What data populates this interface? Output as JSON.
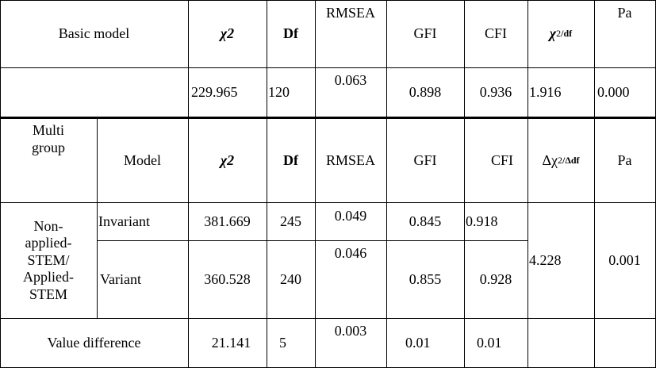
{
  "basic": {
    "header": {
      "model_label": "Basic model",
      "chi2": "χ2",
      "df": "Df",
      "rmsea": "RMSEA",
      "gfi": "GFI",
      "cfi": "CFI",
      "chi2df_chi": "χ",
      "chi2df_sup": "2",
      "chi2df_sub": "/df",
      "pa": "Pa"
    },
    "row": {
      "chi2": "229.965",
      "df": "120",
      "rmsea": "0.063",
      "gfi": "0.898",
      "cfi": "0.936",
      "chi2df": "1.916",
      "pa": "0.000"
    }
  },
  "multi": {
    "header": {
      "group_label": "Multi group",
      "model_label": "Model",
      "chi2": "χ2",
      "df": "Df",
      "rmsea": "RMSEA",
      "gfi": "GFI",
      "cfi": "CFI",
      "delta_chi": "Δχ",
      "delta_sup": "2",
      "delta_sub": "/Δdf",
      "pa": "Pa"
    },
    "group_name": "Non-applied-STEM/ Applied-STEM",
    "rows": [
      {
        "model": "Invariant",
        "chi2": "381.669",
        "df": "245",
        "rmsea": "0.049",
        "gfi": "0.845",
        "cfi": "0.918"
      },
      {
        "model": "Variant",
        "chi2": "360.528",
        "df": "240",
        "rmsea": "0.046",
        "gfi": "0.855",
        "cfi": "0.928"
      }
    ],
    "delta": "4.228",
    "pa": "0.001",
    "difference": {
      "label": "Value difference",
      "chi2": "21.141",
      "df": "5",
      "rmsea": "0.003",
      "gfi": "0.01",
      "cfi": "0.01"
    }
  }
}
